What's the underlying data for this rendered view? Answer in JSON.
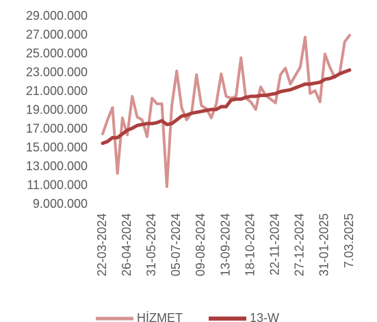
{
  "chart_data": {
    "type": "line",
    "categories": [
      "22-03-2024",
      null,
      null,
      null,
      null,
      "26-04-2024",
      null,
      null,
      null,
      null,
      "31-05-2024",
      null,
      null,
      null,
      null,
      "05-07-2024",
      null,
      null,
      null,
      null,
      "09-08-2024",
      null,
      null,
      null,
      null,
      "13-09-2024",
      null,
      null,
      null,
      null,
      "18-10-2024",
      null,
      null,
      null,
      null,
      "22-11-2024",
      null,
      null,
      null,
      null,
      "27-12-2024",
      null,
      null,
      null,
      null,
      "31-01-2025",
      null,
      null,
      null,
      null,
      "7.03.2025"
    ],
    "series": [
      {
        "name": "HİZMET",
        "color": "#d69290",
        "values": [
          16500000,
          18000000,
          19300000,
          12300000,
          18200000,
          16400000,
          20500000,
          18300000,
          18000000,
          16200000,
          20300000,
          19700000,
          19700000,
          10900000,
          19500000,
          23200000,
          19300000,
          18000000,
          18700000,
          22800000,
          19500000,
          19200000,
          18200000,
          19700000,
          22900000,
          20500000,
          20300000,
          20500000,
          24600000,
          20300000,
          19900000,
          19100000,
          21500000,
          20600000,
          20200000,
          19800000,
          22800000,
          23500000,
          21800000,
          22700000,
          23600000,
          26800000,
          20800000,
          21100000,
          19900000,
          25000000,
          23600000,
          22500000,
          23000000,
          26300000,
          27000000
        ]
      },
      {
        "name": "13-W",
        "color": "#ab3f3d",
        "values": [
          15500000,
          15700000,
          16100000,
          16100000,
          16500000,
          16900000,
          17100000,
          17400000,
          17500000,
          17600000,
          17600000,
          17700000,
          17900000,
          17500000,
          17600000,
          18000000,
          18400000,
          18500000,
          18700000,
          18800000,
          18900000,
          19000000,
          19100000,
          19100000,
          19400000,
          19400000,
          20100000,
          20200000,
          20200000,
          20400000,
          20500000,
          20500000,
          20600000,
          20600000,
          20700000,
          20800000,
          21000000,
          21100000,
          21200000,
          21400000,
          21600000,
          21800000,
          21800000,
          21900000,
          22000000,
          22300000,
          22400000,
          22600000,
          22900000,
          23100000,
          23300000
        ]
      }
    ],
    "ylim": [
      9000000,
      29000000
    ],
    "yticks": [
      {
        "value": 9000000,
        "label": "9.000.000"
      },
      {
        "value": 11000000,
        "label": "11.000.000"
      },
      {
        "value": 13000000,
        "label": "13.000.000"
      },
      {
        "value": 15000000,
        "label": "15.000.000"
      },
      {
        "value": 17000000,
        "label": "17.000.000"
      },
      {
        "value": 19000000,
        "label": "19.000.000"
      },
      {
        "value": 21000000,
        "label": "21.000.000"
      },
      {
        "value": 23000000,
        "label": "23.000.000"
      },
      {
        "value": 25000000,
        "label": "25.000.000"
      },
      {
        "value": 27000000,
        "label": "27.000.000"
      },
      {
        "value": 29000000,
        "label": "29.000.000"
      }
    ],
    "grid": false,
    "legend": "bottom"
  }
}
